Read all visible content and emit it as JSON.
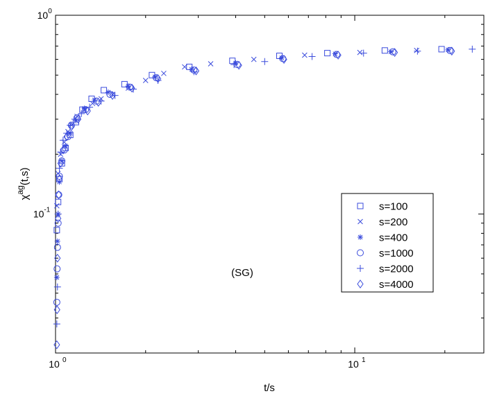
{
  "chart_data": {
    "type": "scatter",
    "title": "",
    "xlabel": "t/s",
    "ylabel": {
      "base": "χ",
      "sup": "ag",
      "rest": "(t,s)"
    },
    "xscale": "log",
    "yscale": "log",
    "xlim": [
      1,
      27
    ],
    "ylim": [
      0.02,
      1
    ],
    "x_ticks": [
      {
        "value": 1,
        "base": "10",
        "exp": "0"
      },
      {
        "value": 10,
        "base": "10",
        "exp": "1"
      }
    ],
    "y_ticks": [
      {
        "value": 0.1,
        "base": "10",
        "exp": "-1"
      },
      {
        "value": 1,
        "base": "10",
        "exp": "0"
      }
    ],
    "grid": false,
    "color": "#3a4bdc",
    "legend_position": "right",
    "annotation": "(SG)",
    "series": [
      {
        "name": "s=100",
        "marker": "square",
        "x": [
          1.01,
          1.02,
          1.03,
          1.05,
          1.08,
          1.12,
          1.17,
          1.23,
          1.32,
          1.45,
          1.7,
          2.1,
          2.8,
          3.9,
          5.6,
          8.1,
          12.6,
          19.5
        ],
        "y": [
          0.083,
          0.115,
          0.15,
          0.18,
          0.215,
          0.25,
          0.29,
          0.335,
          0.38,
          0.42,
          0.45,
          0.5,
          0.55,
          0.59,
          0.625,
          0.645,
          0.665,
          0.675
        ]
      },
      {
        "name": "s=200",
        "marker": "x",
        "x": [
          1.01,
          1.02,
          1.04,
          1.07,
          1.1,
          1.13,
          1.18,
          1.25,
          1.33,
          1.42,
          1.55,
          1.75,
          2.0,
          2.3,
          2.7,
          3.3,
          4.6,
          6.8,
          10.4,
          16.1
        ],
        "y": [
          0.11,
          0.16,
          0.2,
          0.23,
          0.26,
          0.28,
          0.31,
          0.335,
          0.36,
          0.38,
          0.4,
          0.43,
          0.47,
          0.51,
          0.55,
          0.57,
          0.6,
          0.63,
          0.65,
          0.665
        ]
      },
      {
        "name": "s=400",
        "marker": "star",
        "x": [
          1.01,
          1.015,
          1.02,
          1.03,
          1.05,
          1.08,
          1.12,
          1.17,
          1.25,
          1.35,
          1.5,
          1.75,
          2.15,
          2.85,
          4.0,
          5.7,
          8.6,
          13.2,
          20.5
        ],
        "y": [
          0.048,
          0.073,
          0.1,
          0.145,
          0.185,
          0.22,
          0.255,
          0.295,
          0.34,
          0.375,
          0.41,
          0.44,
          0.49,
          0.535,
          0.575,
          0.61,
          0.64,
          0.655,
          0.67
        ]
      },
      {
        "name": "s=1000",
        "marker": "circle",
        "x": [
          1.01,
          1.012,
          1.015,
          1.02,
          1.025,
          1.03,
          1.05,
          1.07,
          1.1,
          1.13,
          1.18,
          1.26,
          1.37,
          1.52,
          1.77,
          2.17,
          2.9,
          4.05,
          5.75,
          8.7,
          13.4,
          20.8
        ],
        "y": [
          0.036,
          0.053,
          0.068,
          0.09,
          0.125,
          0.155,
          0.185,
          0.21,
          0.245,
          0.28,
          0.305,
          0.335,
          0.37,
          0.4,
          0.435,
          0.485,
          0.53,
          0.565,
          0.605,
          0.635,
          0.655,
          0.665
        ]
      },
      {
        "name": "s=2000",
        "marker": "plus",
        "x": [
          1.01,
          1.015,
          1.02,
          1.03,
          1.04,
          1.06,
          1.09,
          1.12,
          1.16,
          1.22,
          1.3,
          1.42,
          1.58,
          1.82,
          2.2,
          2.9,
          3.95,
          5.0,
          7.2,
          10.7,
          16.2,
          24.7
        ],
        "y": [
          0.028,
          0.043,
          0.1,
          0.17,
          0.205,
          0.235,
          0.255,
          0.28,
          0.3,
          0.32,
          0.345,
          0.37,
          0.395,
          0.425,
          0.47,
          0.52,
          0.565,
          0.585,
          0.62,
          0.645,
          0.66,
          0.675
        ]
      },
      {
        "name": "s=4000",
        "marker": "diamond",
        "x": [
          1.01,
          1.012,
          1.015,
          1.02,
          1.025,
          1.03,
          1.04,
          1.06,
          1.09,
          1.13,
          1.19,
          1.28,
          1.39,
          1.55,
          1.8,
          2.2,
          2.95,
          4.1,
          5.8,
          8.8,
          13.6,
          21.1
        ],
        "y": [
          0.022,
          0.033,
          0.06,
          0.095,
          0.125,
          0.15,
          0.18,
          0.21,
          0.245,
          0.275,
          0.3,
          0.33,
          0.365,
          0.395,
          0.43,
          0.48,
          0.525,
          0.56,
          0.6,
          0.63,
          0.65,
          0.66
        ]
      }
    ]
  }
}
